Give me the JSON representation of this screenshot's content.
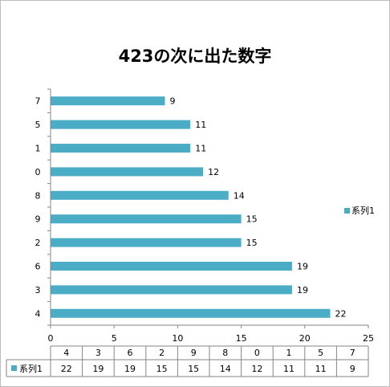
{
  "chart_data": {
    "type": "bar",
    "orientation": "horizontal",
    "title": "423の次に出た数字",
    "categories": [
      "4",
      "3",
      "6",
      "2",
      "9",
      "8",
      "0",
      "1",
      "5",
      "7"
    ],
    "series": [
      {
        "name": "系列1",
        "values": [
          22,
          19,
          19,
          15,
          15,
          14,
          12,
          11,
          11,
          9
        ],
        "color": "#4bacc6"
      }
    ],
    "xlim": [
      0,
      25
    ],
    "xticks": [
      "0",
      "5",
      "10",
      "15",
      "20",
      "25"
    ],
    "legend_position": "right",
    "data_table": true
  }
}
